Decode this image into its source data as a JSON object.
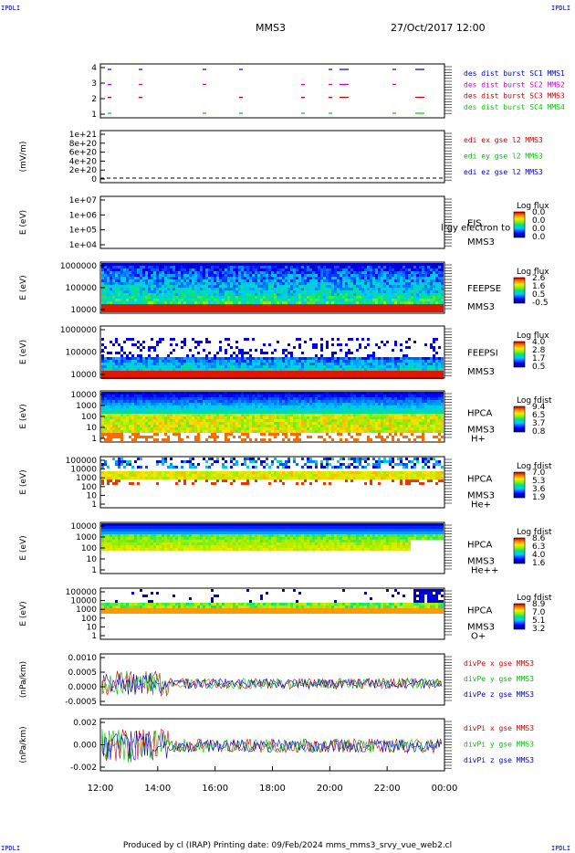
{
  "corner_label": "IPDLI",
  "header": {
    "spacecraft": "MMS3",
    "datetime": "27/Oct/2017 12:00"
  },
  "footer": "Produced by cl (IRAP)   Printing date: 09/Feb/2024   mms_mms3_srvy_vue_web2.cl",
  "colors": {
    "c1": "#0000cc",
    "c2": "#cc00cc",
    "c3": "#cc0000",
    "c4": "#00cc00",
    "x": "#d40000",
    "y": "#00c000",
    "z": "#0000d0"
  },
  "chart_data": {
    "type": "heatmap",
    "x_ticks": [
      "12:00",
      "14:00",
      "16:00",
      "18:00",
      "20:00",
      "22:00",
      "00:00"
    ],
    "x_range": [
      "12:00",
      "00:00"
    ],
    "panels": [
      {
        "type": "scatter",
        "ytick_labels": [
          "4",
          "3",
          "2",
          "1"
        ],
        "legend": [
          {
            "label": "des dist burst SC1 MMS1",
            "color": "#0000cc"
          },
          {
            "label": "des dist burst SC2 MMS2",
            "color": "#cc00cc"
          },
          {
            "label": "des dist burst SC3 MMS3",
            "color": "#cc0000"
          },
          {
            "label": "des dist burst SC4 MMS4",
            "color": "#00cc00"
          }
        ]
      },
      {
        "type": "line",
        "ylabel": "(mV/m)",
        "ytick_labels": [
          "1e+21",
          "8e+20",
          "6e+20",
          "4e+20",
          "2e+20",
          "0"
        ],
        "legend": [
          {
            "label": "edi ex gse l2 MMS3",
            "color": "#d40000"
          },
          {
            "label": "edi ey gse l2 MMS3",
            "color": "#00c000"
          },
          {
            "label": "edi ez gse l2 MMS3",
            "color": "#0000d0"
          }
        ]
      },
      {
        "type": "heatmap",
        "ylabel": "E (eV)",
        "ytick_labels": [
          "1e+07",
          "1e+06",
          "1e+05",
          "1e+04"
        ],
        "side_labels": [
          "EIS",
          "MMS3"
        ],
        "overlay_text": "lrgy electron to",
        "colorbar_title": "Log flux",
        "colorbar_ticks": [
          "0.0",
          "0.0",
          "0.0",
          "0.0"
        ]
      },
      {
        "type": "heatmap",
        "ylabel": "E (eV)",
        "ytick_labels": [
          "1000000",
          "100000",
          "10000"
        ],
        "side_labels": [
          "FEEPSE",
          "MMS3"
        ],
        "colorbar_title": "Log flux",
        "colorbar_ticks": [
          "2.6",
          "1.6",
          "0.5",
          "-0.5"
        ]
      },
      {
        "type": "heatmap",
        "ylabel": "E (eV)",
        "ytick_labels": [
          "1000000",
          "100000",
          "10000"
        ],
        "side_labels": [
          "FEEPSI",
          "MMS3"
        ],
        "colorbar_title": "Log flux",
        "colorbar_ticks": [
          "4.0",
          "2.8",
          "1.7",
          "0.5"
        ]
      },
      {
        "type": "heatmap",
        "ylabel": "E (eV)",
        "ytick_labels": [
          "10000",
          "1000",
          "100",
          "10",
          "1"
        ],
        "side_labels": [
          "HPCA",
          "MMS3"
        ],
        "species": "H+",
        "colorbar_title": "Log fdist",
        "colorbar_ticks": [
          "9.4",
          "6.5",
          "3.7",
          "0.8"
        ]
      },
      {
        "type": "heatmap",
        "ylabel": "E (eV)",
        "ytick_labels": [
          "100000",
          "10000",
          "1000",
          "100",
          "10",
          "1"
        ],
        "side_labels": [
          "HPCA",
          "MMS3"
        ],
        "species": "He+",
        "colorbar_title": "Log fdist",
        "colorbar_ticks": [
          "7.0",
          "5.3",
          "3.6",
          "1.9"
        ]
      },
      {
        "type": "heatmap",
        "ylabel": "E (eV)",
        "ytick_labels": [
          "10000",
          "1000",
          "100",
          "10",
          "1"
        ],
        "side_labels": [
          "HPCA",
          "MMS3"
        ],
        "species": "He++",
        "colorbar_title": "Log fdist",
        "colorbar_ticks": [
          "8.6",
          "6.3",
          "4.0",
          "1.6"
        ]
      },
      {
        "type": "heatmap",
        "ylabel": "E (eV)",
        "ytick_labels": [
          "100000",
          "10000",
          "1000",
          "100",
          "10",
          "1"
        ],
        "side_labels": [
          "HPCA",
          "MMS3"
        ],
        "species": "O+",
        "colorbar_title": "Log fdist",
        "colorbar_ticks": [
          "8.9",
          "7.0",
          "5.1",
          "3.2"
        ]
      },
      {
        "type": "line",
        "ylabel": "(nPa/km)",
        "ytick_labels": [
          "0.0010",
          "0.0005",
          "0.0000",
          "-0.0005"
        ],
        "legend": [
          {
            "label": "divPe x gse MMS3",
            "color": "#d40000"
          },
          {
            "label": "divPe y gse MMS3",
            "color": "#00c000"
          },
          {
            "label": "divPe z gse MMS3",
            "color": "#0000d0"
          }
        ]
      },
      {
        "type": "line",
        "ylabel": "(nPa/km)",
        "ytick_labels": [
          "0.002",
          "0.000",
          "-0.002"
        ],
        "legend": [
          {
            "label": "divPi x gse MMS3",
            "color": "#d40000"
          },
          {
            "label": "divPi y gse MMS3",
            "color": "#00c000"
          },
          {
            "label": "divPi z gse MMS3",
            "color": "#0000d0"
          }
        ]
      }
    ]
  }
}
